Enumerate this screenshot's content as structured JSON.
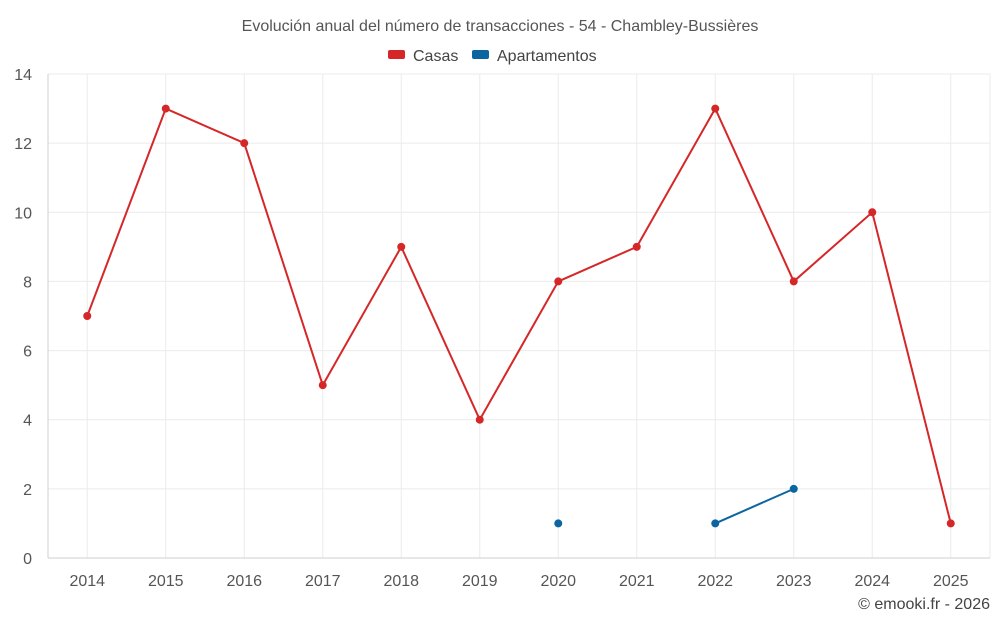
{
  "chart_data": {
    "type": "line",
    "title": "Evolución anual del número de transacciones - 54 - Chambley-Bussières",
    "xlabel": "",
    "ylabel": "",
    "categories": [
      "2014",
      "2015",
      "2016",
      "2017",
      "2018",
      "2019",
      "2020",
      "2021",
      "2022",
      "2023",
      "2024",
      "2025"
    ],
    "ylim": [
      0,
      14
    ],
    "yticks": [
      0,
      2,
      4,
      6,
      8,
      10,
      12,
      14
    ],
    "grid": true,
    "legend_position": "top-center",
    "series": [
      {
        "name": "Casas",
        "color": "#d62728",
        "values": [
          7,
          13,
          12,
          5,
          9,
          4,
          8,
          9,
          13,
          8,
          10,
          1
        ]
      },
      {
        "name": "Apartamentos",
        "color": "#0b65a0",
        "values": [
          null,
          null,
          null,
          null,
          null,
          null,
          1,
          null,
          1,
          2,
          null,
          null
        ]
      }
    ],
    "credit": "© emooki.fr - 2026"
  }
}
